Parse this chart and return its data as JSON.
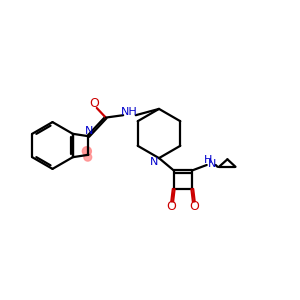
{
  "bg_color": "#ffffff",
  "bond_color": "#000000",
  "n_color": "#0000cc",
  "o_color": "#cc0000",
  "highlight_color": "#ff8888",
  "line_width": 1.6,
  "figsize": [
    3.0,
    3.0
  ],
  "dpi": 100,
  "xlim": [
    0,
    10
  ],
  "ylim": [
    0,
    10
  ]
}
